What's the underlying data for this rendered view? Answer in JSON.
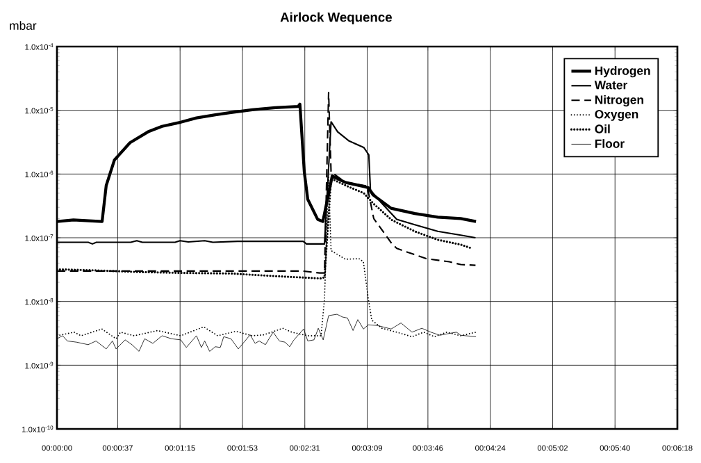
{
  "chart_data": {
    "type": "line",
    "title": "Airlock Wequence",
    "ylabel": "mbar",
    "log": "y",
    "grid": true,
    "legend": "top right",
    "marker": "none",
    "xlim": [
      0,
      378
    ],
    "ylim": [
      1e-10,
      0.0001
    ],
    "xticks": [
      {
        "value": 0,
        "label": "00:00:00"
      },
      {
        "value": 37,
        "label": "00:00:37"
      },
      {
        "value": 75,
        "label": "00:01:15"
      },
      {
        "value": 113,
        "label": "00:01:53"
      },
      {
        "value": 151,
        "label": "00:02:31"
      },
      {
        "value": 189,
        "label": "00:03:09"
      },
      {
        "value": 226,
        "label": "00:03:46"
      },
      {
        "value": 264,
        "label": "00:04:24"
      },
      {
        "value": 302,
        "label": "00:05:02"
      },
      {
        "value": 340,
        "label": "00:05:40"
      },
      {
        "value": 378,
        "label": "00:06:18"
      }
    ],
    "yticks": [
      {
        "value": 1e-10,
        "label": "1.0x10$^{-10}$"
      },
      {
        "value": 1e-09,
        "label": "1.0x10$^{-9}$"
      },
      {
        "value": 1e-08,
        "label": "1.0x10$^{-8}$"
      },
      {
        "value": 1e-07,
        "label": "1.0x10$^{-7}$"
      },
      {
        "value": 1e-06,
        "label": "1.0x10$^{-6}$"
      },
      {
        "value": 1e-05,
        "label": "1.0x10$^{-5}$"
      },
      {
        "value": 0.0001,
        "label": "1.0x10$^{-4}$"
      }
    ],
    "series": [
      {
        "name": "Hydrogen",
        "color": "#000000",
        "line_style": "solid",
        "x": [
          0,
          10,
          27.5,
          30,
          35,
          44.5,
          55.5,
          64,
          75.4,
          85,
          96.5,
          106,
          119,
          133,
          147,
          148,
          150.7,
          152.8,
          158.8,
          162,
          167.7,
          175.7,
          186.7,
          189.7,
          192.6,
          203.6,
          218,
          232,
          246,
          255.3
        ],
        "values": [
          1.8e-07,
          1.9e-07,
          1.8e-07,
          6.6e-07,
          1.66e-06,
          3.1e-06,
          4.6e-06,
          5.6e-06,
          6.5e-06,
          7.6e-06,
          8.5e-06,
          9.2e-06,
          1.02e-05,
          1.1e-05,
          1.15e-05,
          1.25e-05,
          1.07e-06,
          4e-07,
          1.95e-07,
          1.8e-07,
          9.3e-07,
          7.4e-07,
          6.4e-07,
          6.1e-07,
          4.7e-07,
          2.9e-07,
          2.4e-07,
          2.1e-07,
          2e-07,
          1.8e-07
        ]
      },
      {
        "name": "Water",
        "color": "#000000",
        "line_style": "solid",
        "x": [
          0,
          19,
          21.6,
          24,
          45,
          48.6,
          52,
          72,
          75,
          80,
          90,
          95,
          110,
          150,
          152,
          163,
          167,
          171,
          178,
          187,
          190,
          191,
          197,
          207,
          218,
          232,
          246,
          255
        ],
        "values": [
          8.5e-08,
          8.5e-08,
          8e-08,
          8.5e-08,
          8.5e-08,
          9e-08,
          8.5e-08,
          8.5e-08,
          9e-08,
          8.6e-08,
          9e-08,
          8.5e-08,
          8.8e-08,
          8.8e-08,
          8e-08,
          8e-08,
          6.6e-06,
          4.6e-06,
          3.3e-06,
          2.6e-06,
          2e-06,
          5.6e-07,
          3.7e-07,
          1.95e-07,
          1.6e-07,
          1.26e-07,
          1.1e-07,
          1e-07
        ]
      },
      {
        "name": "Nitrogen",
        "color": "#000000",
        "line_style": "dashed",
        "x": [
          0,
          50,
          100,
          150,
          160,
          163,
          165.5,
          167,
          176,
          189,
          193,
          204,
          207,
          225,
          239,
          246,
          255
        ],
        "values": [
          3e-08,
          3e-08,
          3e-08,
          3e-08,
          2.8e-08,
          2.8e-08,
          1.9e-05,
          1.07e-06,
          7.4e-07,
          6.5e-07,
          2e-07,
          8.1e-08,
          6.8e-08,
          4.7e-08,
          4.2e-08,
          3.8e-08,
          3.7e-08
        ]
      },
      {
        "name": "Oxygen",
        "color": "#000000",
        "line_style": "dotted",
        "x": [
          0,
          10.4,
          14.7,
          27.4,
          36,
          38.7,
          47,
          61.3,
          75.4,
          89.4,
          97.9,
          109,
          119,
          126,
          137.6,
          143,
          152.8,
          160.9,
          163,
          165.5,
          167,
          175.7,
          184,
          186.7,
          189.7,
          191.8,
          198,
          207,
          216.3,
          223.5,
          230,
          237.5,
          246,
          255.3
        ],
        "values": [
          2.9e-09,
          3.3e-09,
          2.9e-09,
          3.7e-09,
          2.6e-09,
          3.3e-09,
          2.9e-09,
          3.5e-09,
          2.9e-09,
          4e-09,
          2.9e-09,
          3.4e-09,
          2.9e-09,
          3e-09,
          3.8e-09,
          3.3e-09,
          2.9e-09,
          2.9e-09,
          1.1e-08,
          9e-07,
          6.3e-08,
          4.6e-08,
          4.7e-08,
          4.2e-08,
          1.1e-08,
          5.1e-09,
          3.8e-09,
          3.3e-09,
          2.8e-09,
          3.3e-09,
          2.8e-09,
          3.3e-09,
          2.9e-09,
          3.3e-09
        ]
      },
      {
        "name": "Oil",
        "color": "#000000",
        "line_style": "dotted",
        "x": [
          0,
          20,
          50,
          80,
          106,
          133,
          161,
          163,
          167,
          176,
          187,
          193,
          204,
          218,
          232,
          246,
          253
        ],
        "values": [
          3.2e-08,
          3.1e-08,
          2.9e-08,
          2.8e-08,
          2.75e-08,
          2.5e-08,
          2.3e-08,
          2.4e-08,
          8.5e-07,
          6.6e-07,
          5e-07,
          3.4e-07,
          1.9e-07,
          1.26e-07,
          9.3e-08,
          7.8e-08,
          6.8e-08
        ]
      },
      {
        "name": "Floor",
        "color": "#000000",
        "line_style": "solid",
        "x": [
          0,
          3.4,
          6.3,
          11.9,
          19,
          23.8,
          30,
          33.8,
          36,
          41.5,
          45.7,
          50,
          53.4,
          58.4,
          64,
          69.8,
          75.4,
          78.8,
          85,
          88,
          90,
          93,
          96.5,
          99.5,
          101.6,
          106,
          110.5,
          117.7,
          120.7,
          123.2,
          127,
          131.7,
          135.5,
          138.9,
          141.8,
          144.4,
          150.3,
          152.8,
          156.6,
          159.2,
          162.2,
          165.5,
          170.6,
          174,
          177,
          180.4,
          183.3,
          186.7,
          189.7,
          195.2,
          203.6,
          209.6,
          216.3,
          222.3,
          227.8,
          233.3,
          237.5,
          243.4,
          246,
          255.3
        ],
        "values": [
          2.6e-09,
          2.9e-09,
          2.4e-09,
          2.3e-09,
          2.1e-09,
          2.4e-09,
          1.8e-09,
          2.4e-09,
          1.8e-09,
          2.5e-09,
          2.1e-09,
          1.65e-09,
          2.6e-09,
          2.2e-09,
          2.9e-09,
          2.6e-09,
          2.5e-09,
          1.9e-09,
          2.9e-09,
          1.9e-09,
          2.4e-09,
          1.65e-09,
          1.95e-09,
          1.9e-09,
          2.8e-09,
          2.6e-09,
          1.8e-09,
          3e-09,
          2.2e-09,
          2.4e-09,
          2.1e-09,
          3.3e-09,
          2.4e-09,
          2.3e-09,
          1.95e-09,
          2.5e-09,
          3.7e-09,
          2.4e-09,
          2.5e-09,
          3.8e-09,
          2.5e-09,
          6e-09,
          6.3e-09,
          5.7e-09,
          5.5e-09,
          3.5e-09,
          5.2e-09,
          3.7e-09,
          4.3e-09,
          4.2e-09,
          3.7e-09,
          4.6e-09,
          3.3e-09,
          3.8e-09,
          3.3e-09,
          2.95e-09,
          3.1e-09,
          3.3e-09,
          2.95e-09,
          2.8e-09
        ]
      }
    ]
  }
}
